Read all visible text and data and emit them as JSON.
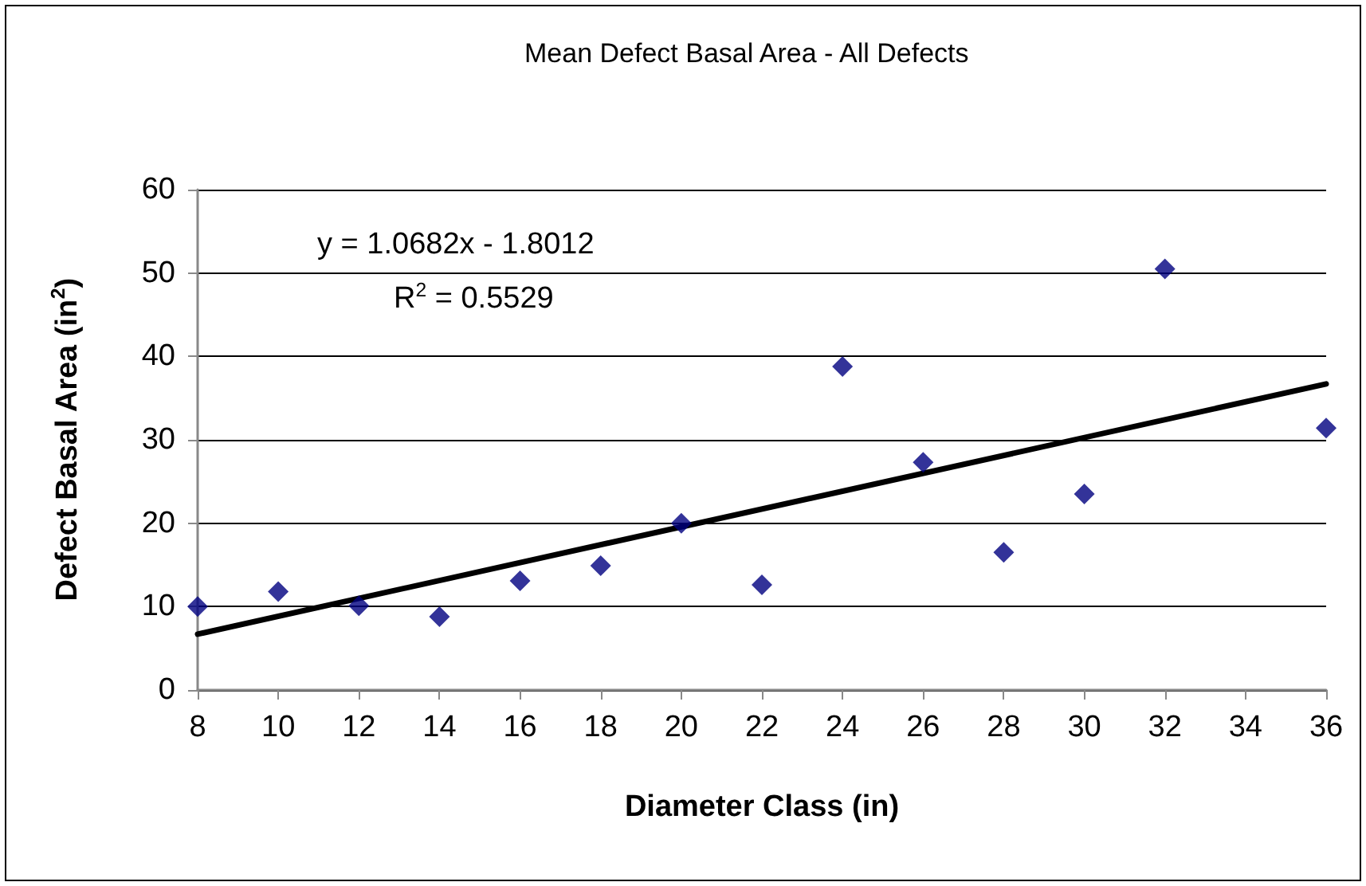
{
  "chart_data": {
    "type": "scatter",
    "title": "Mean Defect Basal Area - All Defects",
    "xlabel": "Diameter Class (in)",
    "ylabel": "Defect Basal Area (in$^{2}$)",
    "x": [
      8,
      10,
      12,
      14,
      16,
      18,
      20,
      22,
      24,
      26,
      28,
      30,
      32,
      36
    ],
    "series": [
      {
        "color": "#000080",
        "values": [
          10.0,
          11.8,
          10.1,
          8.8,
          13.1,
          14.9,
          20.0,
          12.6,
          38.8,
          27.3,
          16.5,
          23.5,
          50.5,
          31.4
        ]
      },
      {
        "type": "line",
        "color": "#000000",
        "marker": "none",
        "x": [
          8,
          36
        ],
        "values": [
          6.7,
          36.7
        ]
      }
    ],
    "annotations": [
      "y = 1.0682x - 1.8012",
      "R$^{2}$ = 0.5529"
    ],
    "xlim": [
      8,
      36
    ],
    "xticks": [
      8,
      10,
      12,
      14,
      16,
      18,
      20,
      22,
      24,
      26,
      28,
      30,
      32,
      34,
      36
    ],
    "ylim": [
      0,
      60
    ],
    "yticks": [
      0,
      10,
      20,
      30,
      40,
      50,
      60
    ],
    "grid": "y",
    "marker": "diamond"
  }
}
